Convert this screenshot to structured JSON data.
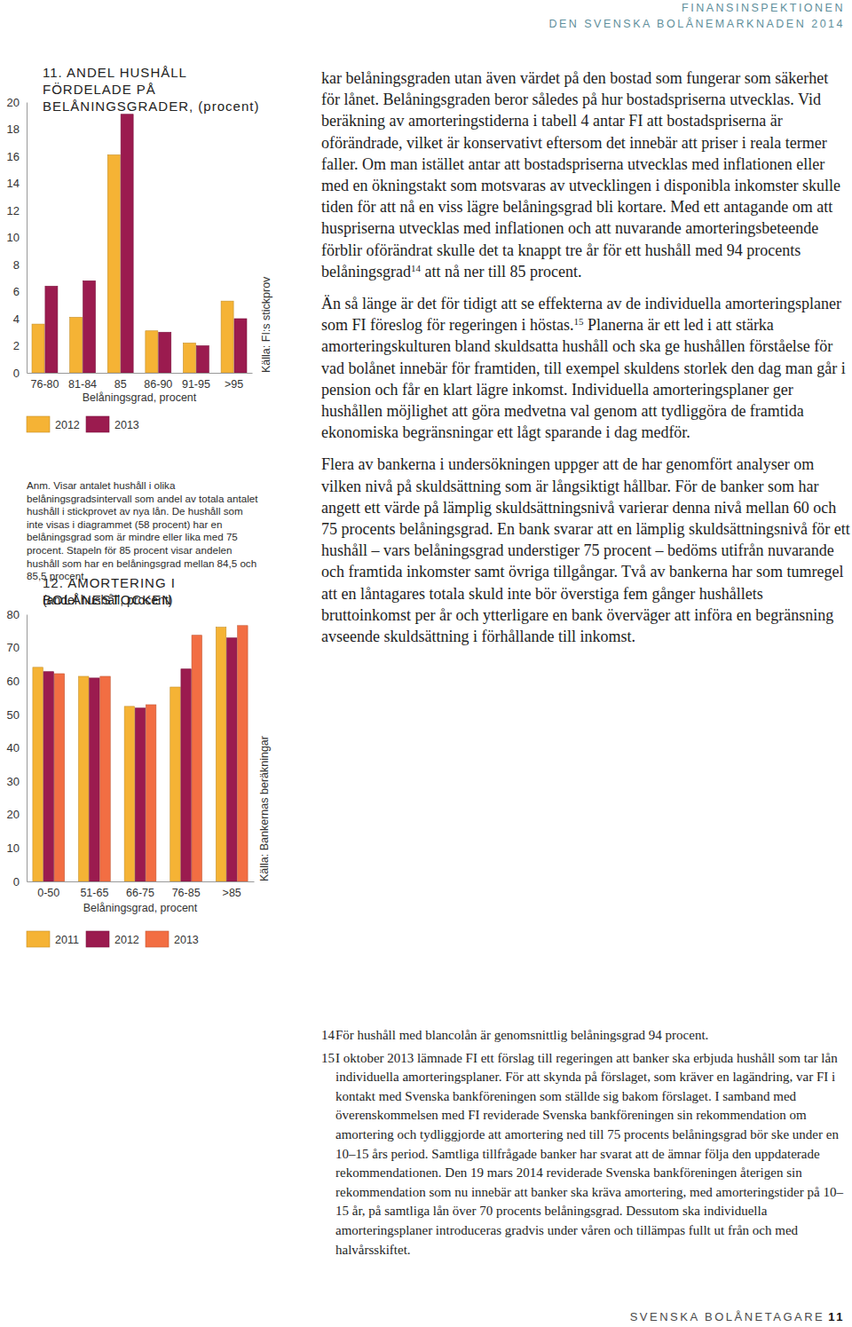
{
  "header": {
    "org": "FINANSINSPEKTIONEN",
    "report": "DEN SVENSKA BOLÅNEMARKNADEN 2014"
  },
  "chart_data": [
    {
      "type": "bar",
      "title": "11. ANDEL HUSHÅLL FÖRDELADE PÅ BELÅNINGSGRADER, (procent)",
      "x_label": "Belåningsgrad, procent",
      "categories": [
        "76-80",
        "81-84",
        "85",
        "86-90",
        "91-95",
        ">95"
      ],
      "series": [
        {
          "name": "2012",
          "color": "#f5b335",
          "values": [
            3.6,
            4.1,
            16.1,
            3.1,
            2.2,
            5.3
          ]
        },
        {
          "name": "2013",
          "color": "#9b1b4f",
          "values": [
            6.4,
            6.8,
            19.1,
            3.0,
            2.0,
            4.0
          ]
        }
      ],
      "ylim": [
        0,
        20
      ],
      "yticks": [
        0,
        2,
        4,
        6,
        8,
        10,
        12,
        14,
        16,
        18,
        20
      ],
      "grid": false,
      "legend": "bottom-left",
      "source": "Källa: FI:s stickprov",
      "note": "Anm. Visar antalet hushåll i olika belåningsgradsintervall som andel av totala antalet hushåll i stickprovet av nya lån. De hushåll som inte visas i diagrammet (58 procent) har en belåningsgrad som är mindre eller lika med 75 procent. Stapeln för 85 procent visar andelen hushåll som har en belåningsgrad mellan 84,5 och 85,5 procent."
    },
    {
      "type": "bar",
      "title": "12. AMORTERING I BOLÅNESTOCKEN",
      "subtitle": "(andel hushåll, procent)",
      "x_label": "Belåningsgrad, procent",
      "categories": [
        "0-50",
        "51-65",
        "66-75",
        "76-85",
        ">85"
      ],
      "series": [
        {
          "name": "2011",
          "color": "#f5b335",
          "values": [
            64.1,
            61.4,
            52.4,
            58.2,
            76.1
          ]
        },
        {
          "name": "2012",
          "color": "#9b1b4f",
          "values": [
            62.8,
            60.9,
            51.9,
            63.6,
            72.9
          ]
        },
        {
          "name": "2013",
          "color": "#f26e43",
          "values": [
            62.2,
            61.4,
            52.9,
            73.7,
            76.6
          ]
        }
      ],
      "ylim": [
        0,
        80
      ],
      "yticks": [
        0,
        10,
        20,
        30,
        40,
        50,
        60,
        70,
        80
      ],
      "grid": false,
      "legend": "bottom-left",
      "source": "Källa: Bankernas beräkningar"
    }
  ],
  "text": {
    "paragraphs": [
      [
        {
          "t": "kar belåningsgraden utan även värdet på den bostad som fungerar som säkerhet för lånet. Belåningsgraden beror således på hur bostadspriserna utvecklas. Vid beräkning av amorteringstiderna i tabell 4 antar FI att bostadspriserna är oförändrade, vilket är konservativt eftersom det innebär att priser i reala termer faller. Om man istället antar att bostadspriserna utvecklas med inflationen eller med en ökningstakt som motsvaras av utvecklingen i disponibla inkomster skulle tiden för att nå en viss lägre belåningsgrad bli kortare. Med ett antagande om att huspriserna utvecklas med inflationen och att nuvarande amorteringsbeteende förblir oförändrat skulle det ta knappt tre år för ett hushåll med 94 procents belåningsgrad"
        },
        {
          "sup": "14"
        },
        {
          "t": " att nå ner till 85 procent."
        }
      ],
      [
        {
          "t": "Än så länge är det för tidigt att se effekterna av de individuella amorteringsplaner som FI föreslog för regeringen i höstas."
        },
        {
          "sup": "15"
        },
        {
          "t": " Planerna är ett led i att stärka amorteringskulturen bland skuldsatta hushåll och ska ge hushållen förståelse för vad bolånet innebär för framtiden, till exempel skuldens storlek den dag man går i pension och får en klart lägre inkomst. Individuella amorteringsplaner ger hushållen möjlighet att göra medvetna val genom att tydliggöra de framtida ekonomiska begränsningar ett lågt sparande i dag medför."
        }
      ],
      [
        {
          "t": "Flera av bankerna i undersökningen uppger att de har genomfört analyser om vilken nivå på skuldsättning som är långsiktigt hållbar. För de banker som har angett ett värde på lämplig skuldsättningsnivå varierar denna nivå mellan 60 och 75 procents belåningsgrad. En bank svarar att en lämplig skuldsättningsnivå för ett hushåll – vars belåningsgrad understiger 75 procent – bedöms utifrån nuvarande och framtida inkomster samt övriga tillgångar. Två av bankerna har som tumregel att en låntagares totala skuld inte bör överstiga fem gånger hushållets bruttoinkomst per år och ytterligare en bank överväger att införa en begränsning avseende skuldsättning i förhållande till inkomst."
        }
      ]
    ]
  },
  "footnotes": [
    {
      "number": "14",
      "text": "För hushåll med blancolån är genomsnittlig belåningsgrad 94 procent."
    },
    {
      "number": "15",
      "text": "I oktober 2013 lämnade FI ett förslag till regeringen att banker ska erbjuda hushåll som tar lån individuella amorteringsplaner. För att skynda på förslaget, som kräver en lagändring, var FI i kontakt med Svenska bankföreningen som ställde sig bakom förslaget. I samband med överenskommelsen med FI reviderade Svenska bankföreningen sin rekommendation om amortering och tydliggjorde att amortering ned till 75 procents belåningsgrad bör ske under en 10–15 års period. Samtliga tillfrågade banker har svarat att de ämnar följa den uppdaterade rekommendationen. Den 19 mars 2014 reviderade Svenska bankföreningen återigen sin rekommendation som nu innebär att banker ska kräva amortering, med amorteringstider på 10–15 år, på samtliga lån över 70 procents belåningsgrad. Dessutom ska individuella amorteringsplaner introduceras gradvis under våren och tillämpas fullt ut från och med halvårsskiftet."
    }
  ],
  "footer": {
    "section": "SVENSKA BOLÅNETAGARE",
    "page": "11"
  }
}
